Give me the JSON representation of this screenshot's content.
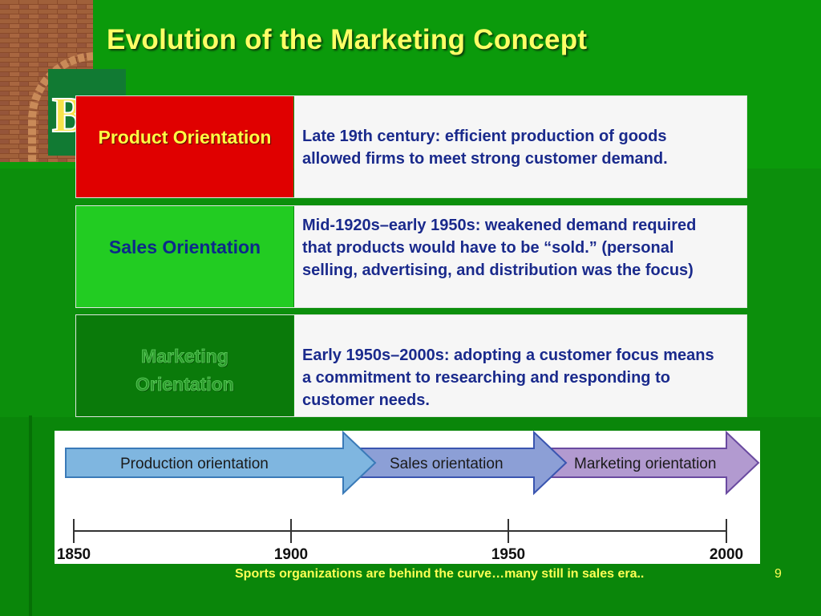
{
  "slide": {
    "title": "Evolution of the Marketing Concept",
    "logo_text": "BU",
    "footer": "Sports organizations are behind the curve…many still in sales era..",
    "page_number": "9"
  },
  "rows": [
    {
      "label": "Product Orientation",
      "desc": "Late 19th century: efficient production of goods allowed firms to meet strong customer demand.",
      "color": "#e00000"
    },
    {
      "label": "Sales Orientation",
      "desc": "Mid-1920s–early 1950s: weakened demand required that products would have to be “sold.” (personal selling, advertising, and distribution was the focus)",
      "color": "#22cc22"
    },
    {
      "label": "Marketing Orientation",
      "desc": "Early 1950s–2000s: adopting a customer focus means a commitment to researching and responding to customer needs.",
      "color": "#0a7a0a"
    }
  ],
  "timeline": {
    "arrows": [
      {
        "label": "Production orientation",
        "color": "#7fb6e0"
      },
      {
        "label": "Sales orientation",
        "color": "#8c9fd6"
      },
      {
        "label": "Marketing orientation",
        "color": "#b29ad0"
      }
    ],
    "ticks": [
      "1850",
      "1900",
      "1950",
      "2000"
    ]
  }
}
